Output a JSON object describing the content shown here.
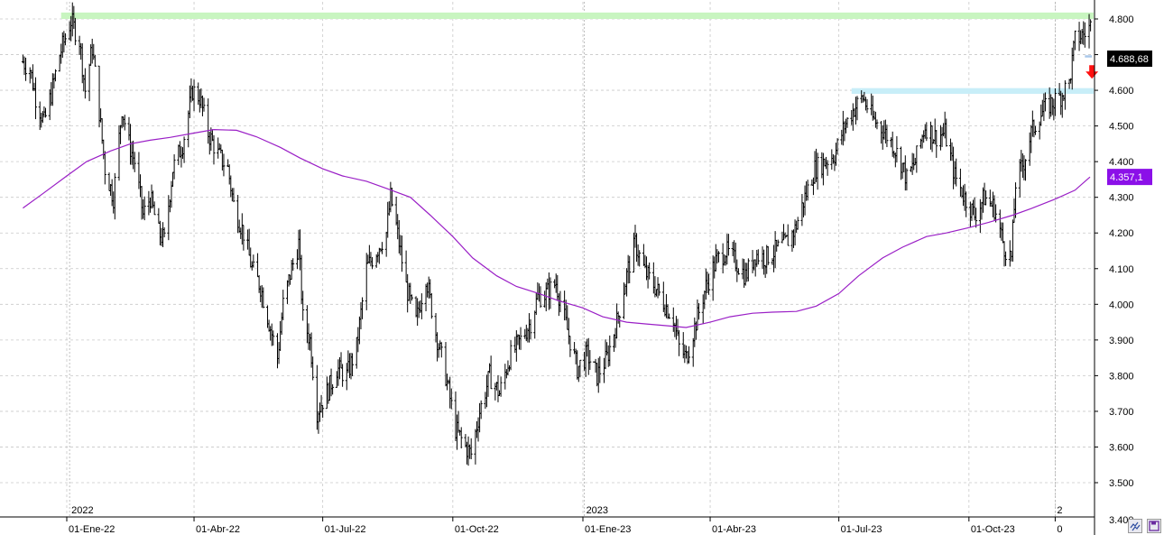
{
  "chart_data": {
    "type": "bar",
    "subtype": "ohlc-price-bars-with-moving-average",
    "grid": true,
    "ylim": [
      3400,
      4830
    ],
    "y_axis_position": "right",
    "yticks": [
      3500,
      3600,
      3700,
      3800,
      3900,
      4000,
      4100,
      4200,
      4300,
      4400,
      4500,
      4600,
      4700,
      4800
    ],
    "ytick_labels": [
      "3.500",
      "3.600",
      "3.700",
      "3.800",
      "3.900",
      "4.000",
      "4.100",
      "4.200",
      "4.300",
      "4.400",
      "4.500",
      "4.600",
      "4.700",
      "4.800"
    ],
    "bottom_cut_label": "3.400",
    "x_range": [
      "2021-12-01",
      "2023-12-05"
    ],
    "x_ticks": [
      {
        "date": "2022-01-01",
        "label": "01-Ene-22"
      },
      {
        "date": "2022-04-01",
        "label": "01-Abr-22"
      },
      {
        "date": "2022-07-01",
        "label": "01-Jul-22"
      },
      {
        "date": "2022-10-01",
        "label": "01-Oct-22"
      },
      {
        "date": "2023-01-01",
        "label": "01-Ene-23"
      },
      {
        "date": "2023-04-01",
        "label": "01-Abr-23"
      },
      {
        "date": "2023-07-01",
        "label": "01-Jul-23"
      },
      {
        "date": "2023-10-01",
        "label": "01-Oct-23"
      },
      {
        "date": "2023-12-01",
        "label": "0"
      }
    ],
    "year_markers": [
      {
        "date": "2022-01-03",
        "label": "2022"
      },
      {
        "date": "2023-01-02",
        "label": "2023"
      },
      {
        "date": "2023-12-01",
        "label": "2"
      }
    ],
    "price_path": [
      [
        "2021-12-01",
        4680
      ],
      [
        "2021-12-06",
        4660
      ],
      [
        "2021-12-10",
        4580
      ],
      [
        "2021-12-16",
        4510
      ],
      [
        "2021-12-21",
        4590
      ],
      [
        "2021-12-27",
        4700
      ],
      [
        "2022-01-04",
        4795
      ],
      [
        "2022-01-10",
        4740
      ],
      [
        "2022-01-14",
        4600
      ],
      [
        "2022-01-19",
        4720
      ],
      [
        "2022-01-24",
        4540
      ],
      [
        "2022-01-28",
        4380
      ],
      [
        "2022-02-03",
        4300
      ],
      [
        "2022-02-09",
        4550
      ],
      [
        "2022-02-14",
        4450
      ],
      [
        "2022-02-18",
        4400
      ],
      [
        "2022-02-24",
        4250
      ],
      [
        "2022-03-01",
        4300
      ],
      [
        "2022-03-07",
        4200
      ],
      [
        "2022-03-11",
        4180
      ],
      [
        "2022-03-17",
        4380
      ],
      [
        "2022-03-24",
        4450
      ],
      [
        "2022-03-31",
        4600
      ],
      [
        "2022-04-05",
        4580
      ],
      [
        "2022-04-11",
        4480
      ],
      [
        "2022-04-18",
        4420
      ],
      [
        "2022-04-25",
        4380
      ],
      [
        "2022-04-29",
        4280
      ],
      [
        "2022-05-06",
        4200
      ],
      [
        "2022-05-12",
        4100
      ],
      [
        "2022-05-18",
        4050
      ],
      [
        "2022-05-24",
        3950
      ],
      [
        "2022-05-30",
        3850
      ],
      [
        "2022-06-03",
        4000
      ],
      [
        "2022-06-09",
        4100
      ],
      [
        "2022-06-14",
        4170
      ],
      [
        "2022-06-17",
        3960
      ],
      [
        "2022-06-22",
        3900
      ],
      [
        "2022-06-27",
        3700
      ],
      [
        "2022-07-05",
        3760
      ],
      [
        "2022-07-11",
        3820
      ],
      [
        "2022-07-18",
        3800
      ],
      [
        "2022-07-25",
        3880
      ],
      [
        "2022-08-01",
        4100
      ],
      [
        "2022-08-08",
        4150
      ],
      [
        "2022-08-15",
        4200
      ],
      [
        "2022-08-18",
        4300
      ],
      [
        "2022-08-22",
        4220
      ],
      [
        "2022-08-29",
        4050
      ],
      [
        "2022-09-05",
        3950
      ],
      [
        "2022-09-12",
        4080
      ],
      [
        "2022-09-19",
        3920
      ],
      [
        "2022-09-26",
        3800
      ],
      [
        "2022-10-03",
        3650
      ],
      [
        "2022-10-10",
        3600
      ],
      [
        "2022-10-14",
        3580
      ],
      [
        "2022-10-20",
        3700
      ],
      [
        "2022-10-27",
        3800
      ],
      [
        "2022-11-03",
        3750
      ],
      [
        "2022-11-10",
        3850
      ],
      [
        "2022-11-18",
        3900
      ],
      [
        "2022-11-25",
        3950
      ],
      [
        "2022-11-30",
        4020
      ],
      [
        "2022-12-06",
        4030
      ],
      [
        "2022-12-13",
        4060
      ],
      [
        "2022-12-19",
        3960
      ],
      [
        "2022-12-28",
        3820
      ],
      [
        "2023-01-04",
        3860
      ],
      [
        "2023-01-11",
        3800
      ],
      [
        "2023-01-18",
        3850
      ],
      [
        "2023-01-25",
        3950
      ],
      [
        "2023-02-02",
        4100
      ],
      [
        "2023-02-07",
        4170
      ],
      [
        "2023-02-14",
        4090
      ],
      [
        "2023-02-21",
        4050
      ],
      [
        "2023-02-28",
        4000
      ],
      [
        "2023-03-06",
        3960
      ],
      [
        "2023-03-10",
        3880
      ],
      [
        "2023-03-15",
        3850
      ],
      [
        "2023-03-22",
        3950
      ],
      [
        "2023-03-29",
        4050
      ],
      [
        "2023-04-05",
        4120
      ],
      [
        "2023-04-12",
        4150
      ],
      [
        "2023-04-19",
        4120
      ],
      [
        "2023-04-26",
        4080
      ],
      [
        "2023-05-03",
        4140
      ],
      [
        "2023-05-10",
        4130
      ],
      [
        "2023-05-17",
        4150
      ],
      [
        "2023-05-24",
        4170
      ],
      [
        "2023-05-31",
        4210
      ],
      [
        "2023-06-07",
        4300
      ],
      [
        "2023-06-14",
        4380
      ],
      [
        "2023-06-21",
        4400
      ],
      [
        "2023-06-28",
        4420
      ],
      [
        "2023-07-05",
        4500
      ],
      [
        "2023-07-12",
        4550
      ],
      [
        "2023-07-18",
        4580
      ],
      [
        "2023-07-25",
        4520
      ],
      [
        "2023-08-01",
        4490
      ],
      [
        "2023-08-08",
        4450
      ],
      [
        "2023-08-15",
        4390
      ],
      [
        "2023-08-18",
        4350
      ],
      [
        "2023-08-24",
        4400
      ],
      [
        "2023-08-31",
        4500
      ],
      [
        "2023-09-07",
        4470
      ],
      [
        "2023-09-14",
        4480
      ],
      [
        "2023-09-21",
        4360
      ],
      [
        "2023-09-28",
        4300
      ],
      [
        "2023-10-05",
        4250
      ],
      [
        "2023-10-12",
        4300
      ],
      [
        "2023-10-19",
        4270
      ],
      [
        "2023-10-26",
        4160
      ],
      [
        "2023-10-31",
        4130
      ],
      [
        "2023-11-03",
        4340
      ],
      [
        "2023-11-09",
        4400
      ],
      [
        "2023-11-14",
        4480
      ],
      [
        "2023-11-20",
        4530
      ],
      [
        "2023-11-27",
        4560
      ],
      [
        "2023-12-04",
        4580
      ],
      [
        "2023-12-11",
        4620
      ],
      [
        "2023-12-15",
        4740
      ],
      [
        "2023-12-22",
        4760
      ],
      [
        "2023-12-28",
        4790
      ],
      [
        "2024-01-03",
        4720
      ],
      [
        "2024-01-05",
        4690
      ]
    ],
    "moving_average": [
      [
        "2021-12-01",
        4270
      ],
      [
        "2021-12-15",
        4310
      ],
      [
        "2022-01-01",
        4360
      ],
      [
        "2022-01-15",
        4400
      ],
      [
        "2022-02-01",
        4430
      ],
      [
        "2022-02-15",
        4450
      ],
      [
        "2022-03-01",
        4460
      ],
      [
        "2022-03-15",
        4468
      ],
      [
        "2022-04-01",
        4480
      ],
      [
        "2022-04-15",
        4490
      ],
      [
        "2022-05-01",
        4488
      ],
      [
        "2022-05-15",
        4470
      ],
      [
        "2022-06-01",
        4440
      ],
      [
        "2022-06-15",
        4410
      ],
      [
        "2022-07-01",
        4380
      ],
      [
        "2022-07-15",
        4360
      ],
      [
        "2022-08-01",
        4345
      ],
      [
        "2022-08-15",
        4325
      ],
      [
        "2022-09-01",
        4300
      ],
      [
        "2022-09-15",
        4250
      ],
      [
        "2022-10-01",
        4190
      ],
      [
        "2022-10-15",
        4130
      ],
      [
        "2022-11-01",
        4080
      ],
      [
        "2022-11-15",
        4050
      ],
      [
        "2022-12-01",
        4030
      ],
      [
        "2022-12-15",
        4010
      ],
      [
        "2023-01-01",
        3990
      ],
      [
        "2023-01-15",
        3965
      ],
      [
        "2023-02-01",
        3950
      ],
      [
        "2023-02-15",
        3945
      ],
      [
        "2023-03-01",
        3940
      ],
      [
        "2023-03-15",
        3935
      ],
      [
        "2023-04-01",
        3950
      ],
      [
        "2023-04-15",
        3965
      ],
      [
        "2023-05-01",
        3975
      ],
      [
        "2023-05-15",
        3978
      ],
      [
        "2023-06-01",
        3980
      ],
      [
        "2023-06-15",
        3995
      ],
      [
        "2023-07-01",
        4030
      ],
      [
        "2023-07-15",
        4080
      ],
      [
        "2023-08-01",
        4130
      ],
      [
        "2023-08-15",
        4160
      ],
      [
        "2023-09-01",
        4190
      ],
      [
        "2023-09-15",
        4200
      ],
      [
        "2023-10-01",
        4215
      ],
      [
        "2023-10-15",
        4230
      ],
      [
        "2023-11-01",
        4250
      ],
      [
        "2023-11-15",
        4270
      ],
      [
        "2023-12-01",
        4295
      ],
      [
        "2023-12-15",
        4320
      ],
      [
        "2024-01-05",
        4357
      ]
    ],
    "resistance_zones": [
      {
        "from": "2021-12-28",
        "to": "2024-01-05",
        "low": 4800,
        "high": 4818,
        "color": "#c8f5c0"
      },
      {
        "from": "2023-07-10",
        "to": "2024-01-05",
        "low": 4590,
        "high": 4606,
        "color": "#c8eef8"
      }
    ],
    "last_price_line": {
      "from": "2023-12-22",
      "to": "2024-01-05",
      "value": 4695,
      "color": "#a9c8ea"
    },
    "price_label": {
      "value": 4688.68,
      "text": "4.688,68",
      "bg": "#000000",
      "fg": "#ffffff"
    },
    "ma_label": {
      "value": 4357.1,
      "text": "4.357,1",
      "bg": "#8b10e8",
      "fg": "#ffffff"
    },
    "signal_arrow": {
      "date": "2023-12-27",
      "value": 4650,
      "direction": "down",
      "color": "#ff1010"
    },
    "colors": {
      "bars": "#000000",
      "moving_average": "#9a1fc6",
      "grid": "#c8c8c8"
    },
    "icons": {
      "scroll_left": "double-arrow-icon",
      "scroll_right": "save-icon"
    }
  }
}
